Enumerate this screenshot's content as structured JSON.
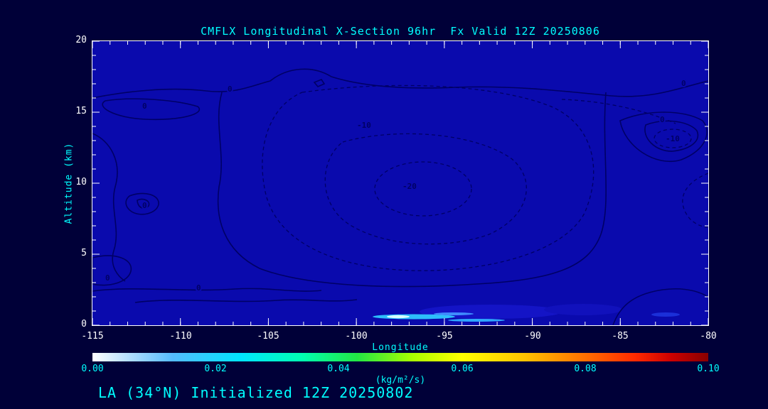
{
  "chart_data": {
    "type": "heatmap",
    "subtype": "contour-cross-section",
    "variable": "CMFLX",
    "section": "Longitudinal X-Section",
    "forecast_hour": "96hr",
    "valid_time": "12Z 20250806",
    "title": "CMFLX Longitudinal X-Section 96hr  Fx Valid 12Z 20250806",
    "xlabel": "Longitude",
    "ylabel": "Altitude (km)",
    "xlim": [
      -115,
      -80
    ],
    "ylim": [
      0,
      20
    ],
    "x_ticks": [
      -115,
      -110,
      -105,
      -100,
      -95,
      -90,
      -85,
      -80
    ],
    "x_tick_labels": [
      "-115",
      "-110",
      "-105",
      "-100",
      "-95",
      "-90",
      "-85",
      "-80"
    ],
    "y_ticks": [
      20,
      15,
      10,
      5,
      0
    ],
    "y_tick_labels": [
      "20",
      "15",
      "10",
      "5",
      "0"
    ],
    "contour_levels_labeled": [
      0,
      -10,
      -20
    ],
    "contour_labels": {
      "zero": "0",
      "minus10": "-10",
      "minus20": "-20"
    },
    "line_styles": {
      "zero": "solid",
      "negative": "dashed"
    },
    "field_summary": "Field mostly near zero; broad weak negative region (-10 to -20) at mid-levels between about -108 and -88; thin positive streaks near the surface around -96 to -93.",
    "colors": {
      "background": "#000038",
      "plot_fill": "#0a0aad",
      "contour_line": "#000066",
      "title_text": "#00ffff",
      "tick_text": "#ffffff",
      "frame": "#ffffff"
    },
    "colorbar": {
      "label": "(kg/m²/s)",
      "ticks": [
        0.0,
        0.02,
        0.04,
        0.06,
        0.08,
        0.1
      ],
      "tick_labels": [
        "0.00",
        "0.02",
        "0.04",
        "0.06",
        "0.08",
        "0.10"
      ],
      "gradient": [
        "#ffffff 0%",
        "#bfe4ff 5%",
        "#55bbff 13%",
        "#00e5ff 24%",
        "#00ffb2 34%",
        "#22e644 43%",
        "#aaff00 52%",
        "#ffff00 60%",
        "#ffc400 70%",
        "#ff7700 79%",
        "#ff2a00 88%",
        "#cc0000 94%",
        "#880000 100%"
      ]
    },
    "station": "LA (34°N)",
    "init_time": "12Z 20250802",
    "footer": "LA (34°N) Initialized 12Z 20250802"
  }
}
